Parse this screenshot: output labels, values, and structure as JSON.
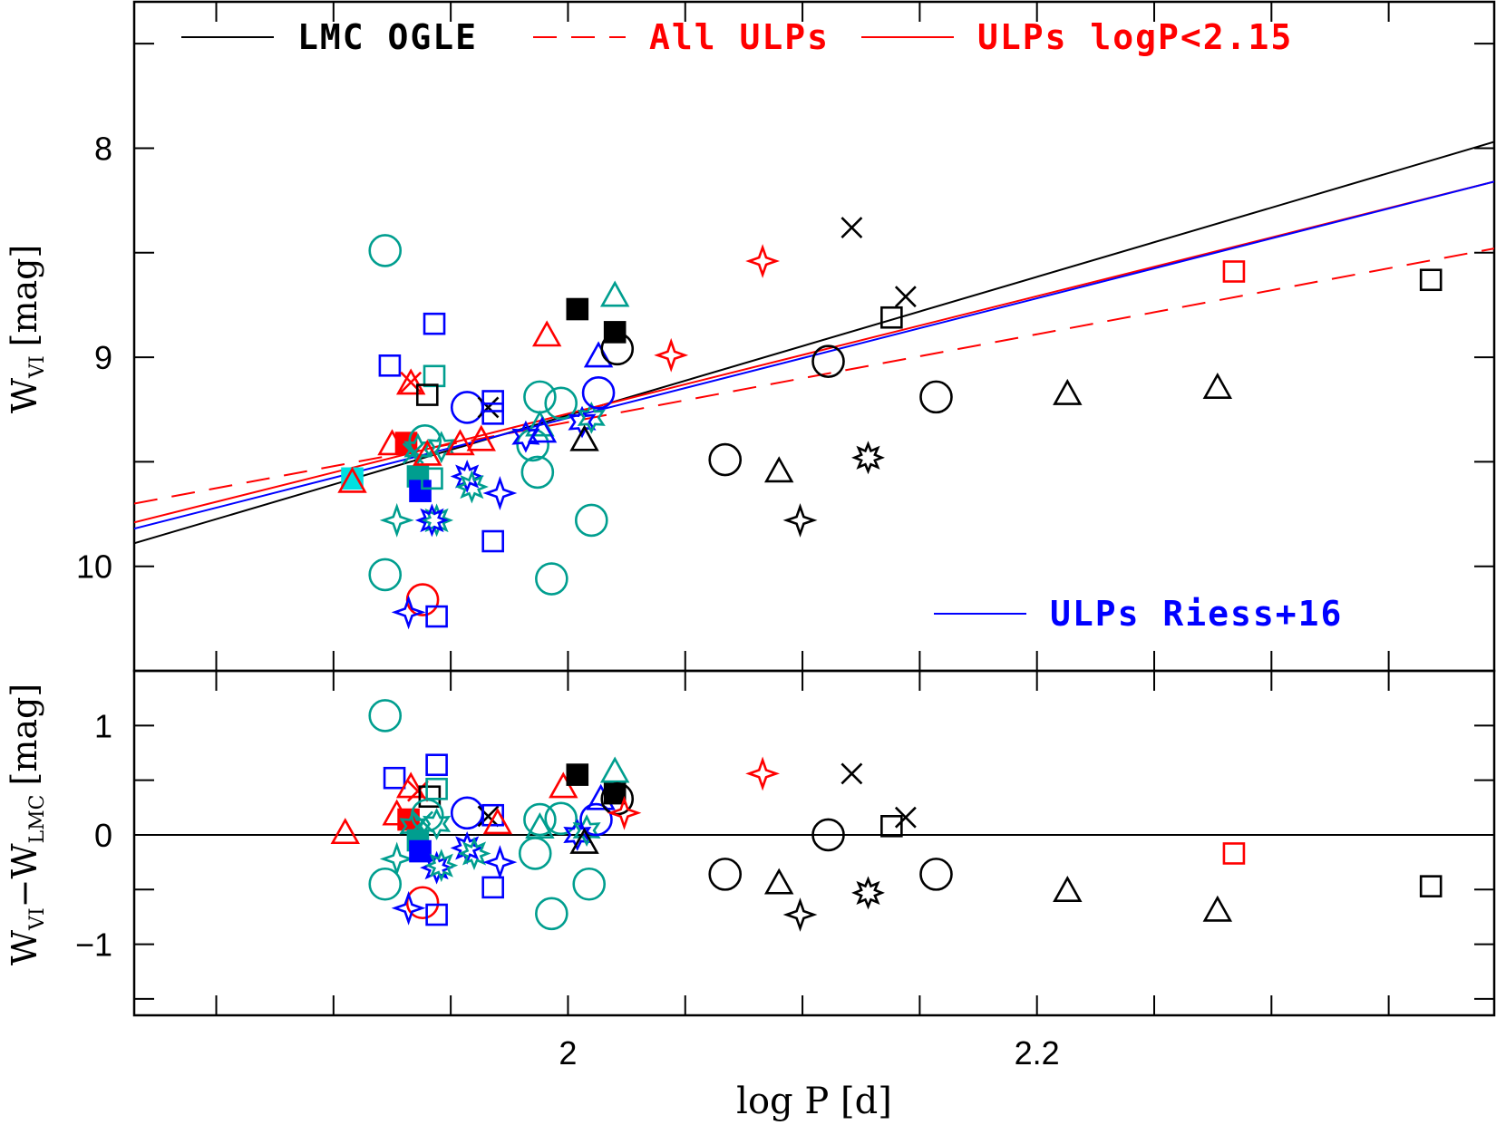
{
  "colors": {
    "black": "#000000",
    "red": "#ff0000",
    "blue": "#0000ff",
    "teal": "#009e8f",
    "cyan": "#00e0e0"
  },
  "chart_data": {
    "type": "scatter",
    "xlabel": "log P [d]",
    "xlim": [
      1.815,
      2.395
    ],
    "x_ticks": [
      1.85,
      1.9,
      1.95,
      2.0,
      2.05,
      2.1,
      2.15,
      2.2,
      2.25,
      2.3,
      2.35
    ],
    "x_tick_labels": [
      {
        "value": 2.0,
        "text": "2"
      },
      {
        "value": 2.2,
        "text": "2.2"
      }
    ],
    "top_panel": {
      "ylabel": "W",
      "ylabel_sub": "VI",
      "ylabel_unit": "[mag]",
      "ylim": [
        10.5,
        7.3
      ],
      "inverted": true,
      "y_ticks": [
        7.5,
        8.0,
        8.5,
        9.0,
        9.5,
        10.0,
        10.5
      ],
      "y_tick_labels": [
        {
          "value": 8,
          "text": "8"
        },
        {
          "value": 9,
          "text": "9"
        },
        {
          "value": 10,
          "text": "10"
        }
      ],
      "lines": [
        {
          "name": "LMC OGLE",
          "color": "black",
          "dash": false,
          "x": [
            1.815,
            2.395
          ],
          "y": [
            9.89,
            7.97
          ]
        },
        {
          "name": "All ULPs",
          "color": "red",
          "dash": true,
          "x": [
            1.815,
            2.395
          ],
          "y": [
            9.7,
            8.48
          ]
        },
        {
          "name": "ULPs logP<2.15",
          "color": "red",
          "dash": false,
          "x": [
            1.815,
            2.395
          ],
          "y": [
            9.79,
            8.16
          ]
        },
        {
          "name": "ULPs Riess+16",
          "color": "blue",
          "dash": false,
          "x": [
            1.815,
            2.395
          ],
          "y": [
            9.82,
            8.16
          ]
        }
      ],
      "legend": [
        {
          "label": "LMC OGLE",
          "color": "black",
          "dash": false,
          "position": "top-left"
        },
        {
          "label": "All ULPs",
          "color": "red",
          "dash": true,
          "position": "top-center"
        },
        {
          "label": "ULPs logP<2.15",
          "color": "red",
          "dash": false,
          "position": "top-right"
        },
        {
          "label": "ULPs Riess+16",
          "color": "blue",
          "dash": false,
          "position": "bottom-right"
        }
      ],
      "points": [
        {
          "x": 1.922,
          "y": 8.49,
          "shape": "circle",
          "color": "teal"
        },
        {
          "x": 1.922,
          "y": 10.04,
          "shape": "circle",
          "color": "teal"
        },
        {
          "x": 1.927,
          "y": 9.78,
          "shape": "star4",
          "color": "teal"
        },
        {
          "x": 1.924,
          "y": 9.04,
          "shape": "square",
          "color": "blue"
        },
        {
          "x": 1.943,
          "y": 8.84,
          "shape": "square",
          "color": "blue"
        },
        {
          "x": 1.943,
          "y": 9.09,
          "shape": "square",
          "color": "teal"
        },
        {
          "x": 1.933,
          "y": 9.13,
          "shape": "triangle",
          "color": "red"
        },
        {
          "x": 1.933,
          "y": 9.12,
          "shape": "cross",
          "color": "red"
        },
        {
          "x": 1.94,
          "y": 9.18,
          "shape": "square",
          "color": "black"
        },
        {
          "x": 1.925,
          "y": 9.42,
          "shape": "triangle",
          "color": "red"
        },
        {
          "x": 1.931,
          "y": 9.41,
          "shape": "square-filled",
          "color": "red"
        },
        {
          "x": 1.936,
          "y": 9.44,
          "shape": "star6",
          "color": "teal"
        },
        {
          "x": 1.934,
          "y": 9.46,
          "shape": "cross",
          "color": "teal"
        },
        {
          "x": 1.939,
          "y": 9.4,
          "shape": "circle",
          "color": "teal"
        },
        {
          "x": 1.946,
          "y": 9.43,
          "shape": "star6",
          "color": "teal"
        },
        {
          "x": 1.936,
          "y": 9.57,
          "shape": "square-filled",
          "color": "teal"
        },
        {
          "x": 1.937,
          "y": 9.64,
          "shape": "square-filled",
          "color": "blue"
        },
        {
          "x": 1.942,
          "y": 9.58,
          "shape": "square",
          "color": "teal"
        },
        {
          "x": 1.94,
          "y": 9.47,
          "shape": "triangle",
          "color": "red"
        },
        {
          "x": 1.908,
          "y": 9.58,
          "shape": "square-filled",
          "color": "cyan"
        },
        {
          "x": 1.908,
          "y": 9.6,
          "shape": "triangle",
          "color": "red"
        },
        {
          "x": 1.944,
          "y": 9.78,
          "shape": "star8",
          "color": "teal"
        },
        {
          "x": 1.942,
          "y": 9.78,
          "shape": "star8",
          "color": "blue"
        },
        {
          "x": 1.938,
          "y": 10.16,
          "shape": "circle",
          "color": "red"
        },
        {
          "x": 1.932,
          "y": 10.22,
          "shape": "star4",
          "color": "blue"
        },
        {
          "x": 1.944,
          "y": 10.24,
          "shape": "square",
          "color": "blue"
        },
        {
          "x": 1.957,
          "y": 9.24,
          "shape": "circle",
          "color": "blue"
        },
        {
          "x": 1.966,
          "y": 9.24,
          "shape": "cross",
          "color": "black"
        },
        {
          "x": 1.968,
          "y": 9.21,
          "shape": "square",
          "color": "blue"
        },
        {
          "x": 1.968,
          "y": 9.27,
          "shape": "square",
          "color": "blue"
        },
        {
          "x": 1.954,
          "y": 9.42,
          "shape": "triangle",
          "color": "red"
        },
        {
          "x": 1.963,
          "y": 9.4,
          "shape": "triangle",
          "color": "red"
        },
        {
          "x": 1.957,
          "y": 9.57,
          "shape": "star8",
          "color": "blue"
        },
        {
          "x": 1.959,
          "y": 9.62,
          "shape": "star8",
          "color": "teal"
        },
        {
          "x": 1.971,
          "y": 9.65,
          "shape": "star4",
          "color": "blue"
        },
        {
          "x": 1.968,
          "y": 9.88,
          "shape": "square",
          "color": "blue"
        },
        {
          "x": 1.985,
          "y": 9.42,
          "shape": "circle",
          "color": "teal"
        },
        {
          "x": 1.987,
          "y": 9.55,
          "shape": "circle",
          "color": "teal"
        },
        {
          "x": 1.988,
          "y": 9.19,
          "shape": "circle",
          "color": "teal"
        },
        {
          "x": 1.997,
          "y": 9.22,
          "shape": "circle",
          "color": "teal"
        },
        {
          "x": 1.988,
          "y": 9.33,
          "shape": "triangle",
          "color": "teal"
        },
        {
          "x": 1.989,
          "y": 9.36,
          "shape": "triangle",
          "color": "blue"
        },
        {
          "x": 1.982,
          "y": 9.38,
          "shape": "star6",
          "color": "blue"
        },
        {
          "x": 2.006,
          "y": 9.31,
          "shape": "star6",
          "color": "blue"
        },
        {
          "x": 2.01,
          "y": 9.29,
          "shape": "star6",
          "color": "teal"
        },
        {
          "x": 2.013,
          "y": 9.17,
          "shape": "circle",
          "color": "blue"
        },
        {
          "x": 2.01,
          "y": 9.78,
          "shape": "circle",
          "color": "teal"
        },
        {
          "x": 1.993,
          "y": 10.06,
          "shape": "circle",
          "color": "teal"
        },
        {
          "x": 2.004,
          "y": 8.77,
          "shape": "square-filled",
          "color": "black"
        },
        {
          "x": 2.02,
          "y": 8.88,
          "shape": "square-filled",
          "color": "black"
        },
        {
          "x": 2.02,
          "y": 8.71,
          "shape": "triangle",
          "color": "teal"
        },
        {
          "x": 2.013,
          "y": 9.0,
          "shape": "triangle",
          "color": "blue"
        },
        {
          "x": 1.991,
          "y": 8.9,
          "shape": "triangle",
          "color": "red"
        },
        {
          "x": 2.021,
          "y": 8.96,
          "shape": "circle",
          "color": "black"
        },
        {
          "x": 2.007,
          "y": 9.4,
          "shape": "triangle",
          "color": "black"
        },
        {
          "x": 2.044,
          "y": 8.99,
          "shape": "star4",
          "color": "red"
        },
        {
          "x": 2.067,
          "y": 9.49,
          "shape": "circle",
          "color": "black"
        },
        {
          "x": 2.09,
          "y": 9.55,
          "shape": "triangle",
          "color": "black"
        },
        {
          "x": 2.083,
          "y": 8.54,
          "shape": "star4",
          "color": "red"
        },
        {
          "x": 2.099,
          "y": 9.78,
          "shape": "star4",
          "color": "black"
        },
        {
          "x": 2.111,
          "y": 9.02,
          "shape": "circle",
          "color": "black"
        },
        {
          "x": 2.121,
          "y": 8.38,
          "shape": "cross",
          "color": "black"
        },
        {
          "x": 2.128,
          "y": 9.48,
          "shape": "star8",
          "color": "black"
        },
        {
          "x": 2.138,
          "y": 8.81,
          "shape": "square",
          "color": "black"
        },
        {
          "x": 2.144,
          "y": 8.71,
          "shape": "cross",
          "color": "black"
        },
        {
          "x": 2.157,
          "y": 9.19,
          "shape": "circle",
          "color": "black"
        },
        {
          "x": 2.213,
          "y": 9.18,
          "shape": "triangle",
          "color": "black"
        },
        {
          "x": 2.277,
          "y": 9.15,
          "shape": "triangle",
          "color": "black"
        },
        {
          "x": 2.284,
          "y": 8.59,
          "shape": "square",
          "color": "red"
        },
        {
          "x": 2.368,
          "y": 8.63,
          "shape": "square",
          "color": "black"
        }
      ]
    },
    "bottom_panel": {
      "ylabel": "W",
      "ylabel_sub": "VI",
      "ylabel_minus": "−W",
      "ylabel_sub2": "LMC",
      "ylabel_unit": "[mag]",
      "ylim": [
        -1.65,
        1.5
      ],
      "y_ticks": [
        -1.5,
        -1.0,
        -0.5,
        0.0,
        0.5,
        1.0,
        1.5
      ],
      "y_tick_labels": [
        {
          "value": 1,
          "text": "1"
        },
        {
          "value": 0,
          "text": "0"
        },
        {
          "value": -1,
          "text": "−1"
        }
      ],
      "zero_line": 0,
      "points": [
        {
          "x": 1.922,
          "y": 1.09,
          "shape": "circle",
          "color": "teal"
        },
        {
          "x": 1.922,
          "y": -0.45,
          "shape": "circle",
          "color": "teal"
        },
        {
          "x": 1.926,
          "y": 0.52,
          "shape": "square",
          "color": "blue"
        },
        {
          "x": 1.933,
          "y": 0.43,
          "shape": "triangle",
          "color": "red"
        },
        {
          "x": 1.936,
          "y": 0.4,
          "shape": "cross",
          "color": "red"
        },
        {
          "x": 1.941,
          "y": 0.35,
          "shape": "square",
          "color": "black"
        },
        {
          "x": 1.944,
          "y": 0.64,
          "shape": "square",
          "color": "blue"
        },
        {
          "x": 1.944,
          "y": 0.42,
          "shape": "square",
          "color": "teal"
        },
        {
          "x": 1.905,
          "y": 0.01,
          "shape": "triangle",
          "color": "red"
        },
        {
          "x": 1.927,
          "y": 0.18,
          "shape": "triangle",
          "color": "red"
        },
        {
          "x": 1.932,
          "y": 0.14,
          "shape": "square-filled",
          "color": "red"
        },
        {
          "x": 1.934,
          "y": 0.08,
          "shape": "star6",
          "color": "teal"
        },
        {
          "x": 1.938,
          "y": 0.12,
          "shape": "cross",
          "color": "teal"
        },
        {
          "x": 1.94,
          "y": 0.18,
          "shape": "circle",
          "color": "teal"
        },
        {
          "x": 1.944,
          "y": 0.1,
          "shape": "star6",
          "color": "teal"
        },
        {
          "x": 1.927,
          "y": -0.22,
          "shape": "star4",
          "color": "teal"
        },
        {
          "x": 1.936,
          "y": -0.05,
          "shape": "square-filled",
          "color": "teal"
        },
        {
          "x": 1.937,
          "y": -0.15,
          "shape": "square-filled",
          "color": "blue"
        },
        {
          "x": 1.944,
          "y": -0.3,
          "shape": "star8",
          "color": "blue"
        },
        {
          "x": 1.946,
          "y": -0.28,
          "shape": "star8",
          "color": "teal"
        },
        {
          "x": 1.938,
          "y": -0.62,
          "shape": "circle",
          "color": "red"
        },
        {
          "x": 1.932,
          "y": -0.67,
          "shape": "star4",
          "color": "blue"
        },
        {
          "x": 1.944,
          "y": -0.73,
          "shape": "square",
          "color": "blue"
        },
        {
          "x": 1.957,
          "y": 0.2,
          "shape": "circle",
          "color": "blue"
        },
        {
          "x": 1.966,
          "y": 0.17,
          "shape": "cross",
          "color": "black"
        },
        {
          "x": 1.968,
          "y": 0.18,
          "shape": "square",
          "color": "blue"
        },
        {
          "x": 1.97,
          "y": 0.1,
          "shape": "triangle",
          "color": "red"
        },
        {
          "x": 1.957,
          "y": -0.12,
          "shape": "star8",
          "color": "blue"
        },
        {
          "x": 1.96,
          "y": -0.17,
          "shape": "star8",
          "color": "teal"
        },
        {
          "x": 1.971,
          "y": -0.25,
          "shape": "star4",
          "color": "blue"
        },
        {
          "x": 1.968,
          "y": -0.48,
          "shape": "square",
          "color": "blue"
        },
        {
          "x": 1.988,
          "y": 0.14,
          "shape": "circle",
          "color": "teal"
        },
        {
          "x": 1.986,
          "y": -0.17,
          "shape": "circle",
          "color": "teal"
        },
        {
          "x": 1.988,
          "y": 0.06,
          "shape": "triangle",
          "color": "teal"
        },
        {
          "x": 1.997,
          "y": 0.15,
          "shape": "circle",
          "color": "teal"
        },
        {
          "x": 2.004,
          "y": 0.0,
          "shape": "star6",
          "color": "blue"
        },
        {
          "x": 2.008,
          "y": 0.04,
          "shape": "star6",
          "color": "teal"
        },
        {
          "x": 2.012,
          "y": 0.14,
          "shape": "circle",
          "color": "blue"
        },
        {
          "x": 2.014,
          "y": 0.32,
          "shape": "triangle",
          "color": "blue"
        },
        {
          "x": 2.009,
          "y": -0.45,
          "shape": "circle",
          "color": "teal"
        },
        {
          "x": 1.993,
          "y": -0.72,
          "shape": "circle",
          "color": "teal"
        },
        {
          "x": 1.998,
          "y": 0.43,
          "shape": "triangle",
          "color": "red"
        },
        {
          "x": 2.004,
          "y": 0.55,
          "shape": "square-filled",
          "color": "black"
        },
        {
          "x": 2.02,
          "y": 0.38,
          "shape": "square-filled",
          "color": "black"
        },
        {
          "x": 2.02,
          "y": 0.57,
          "shape": "triangle",
          "color": "teal"
        },
        {
          "x": 2.021,
          "y": 0.33,
          "shape": "circle",
          "color": "black"
        },
        {
          "x": 2.007,
          "y": -0.08,
          "shape": "triangle",
          "color": "black"
        },
        {
          "x": 2.024,
          "y": 0.2,
          "shape": "star4",
          "color": "red"
        },
        {
          "x": 2.067,
          "y": -0.36,
          "shape": "circle",
          "color": "black"
        },
        {
          "x": 2.09,
          "y": -0.45,
          "shape": "triangle",
          "color": "black"
        },
        {
          "x": 2.083,
          "y": 0.56,
          "shape": "star4",
          "color": "red"
        },
        {
          "x": 2.099,
          "y": -0.73,
          "shape": "star4",
          "color": "black"
        },
        {
          "x": 2.111,
          "y": 0.0,
          "shape": "circle",
          "color": "black"
        },
        {
          "x": 2.121,
          "y": 0.56,
          "shape": "cross",
          "color": "black"
        },
        {
          "x": 2.128,
          "y": -0.53,
          "shape": "star8",
          "color": "black"
        },
        {
          "x": 2.138,
          "y": 0.08,
          "shape": "square",
          "color": "black"
        },
        {
          "x": 2.144,
          "y": 0.16,
          "shape": "cross",
          "color": "black"
        },
        {
          "x": 2.157,
          "y": -0.36,
          "shape": "circle",
          "color": "black"
        },
        {
          "x": 2.213,
          "y": -0.52,
          "shape": "triangle",
          "color": "black"
        },
        {
          "x": 2.277,
          "y": -0.7,
          "shape": "triangle",
          "color": "black"
        },
        {
          "x": 2.284,
          "y": -0.17,
          "shape": "square",
          "color": "red"
        },
        {
          "x": 2.368,
          "y": -0.47,
          "shape": "square",
          "color": "black"
        }
      ]
    }
  }
}
